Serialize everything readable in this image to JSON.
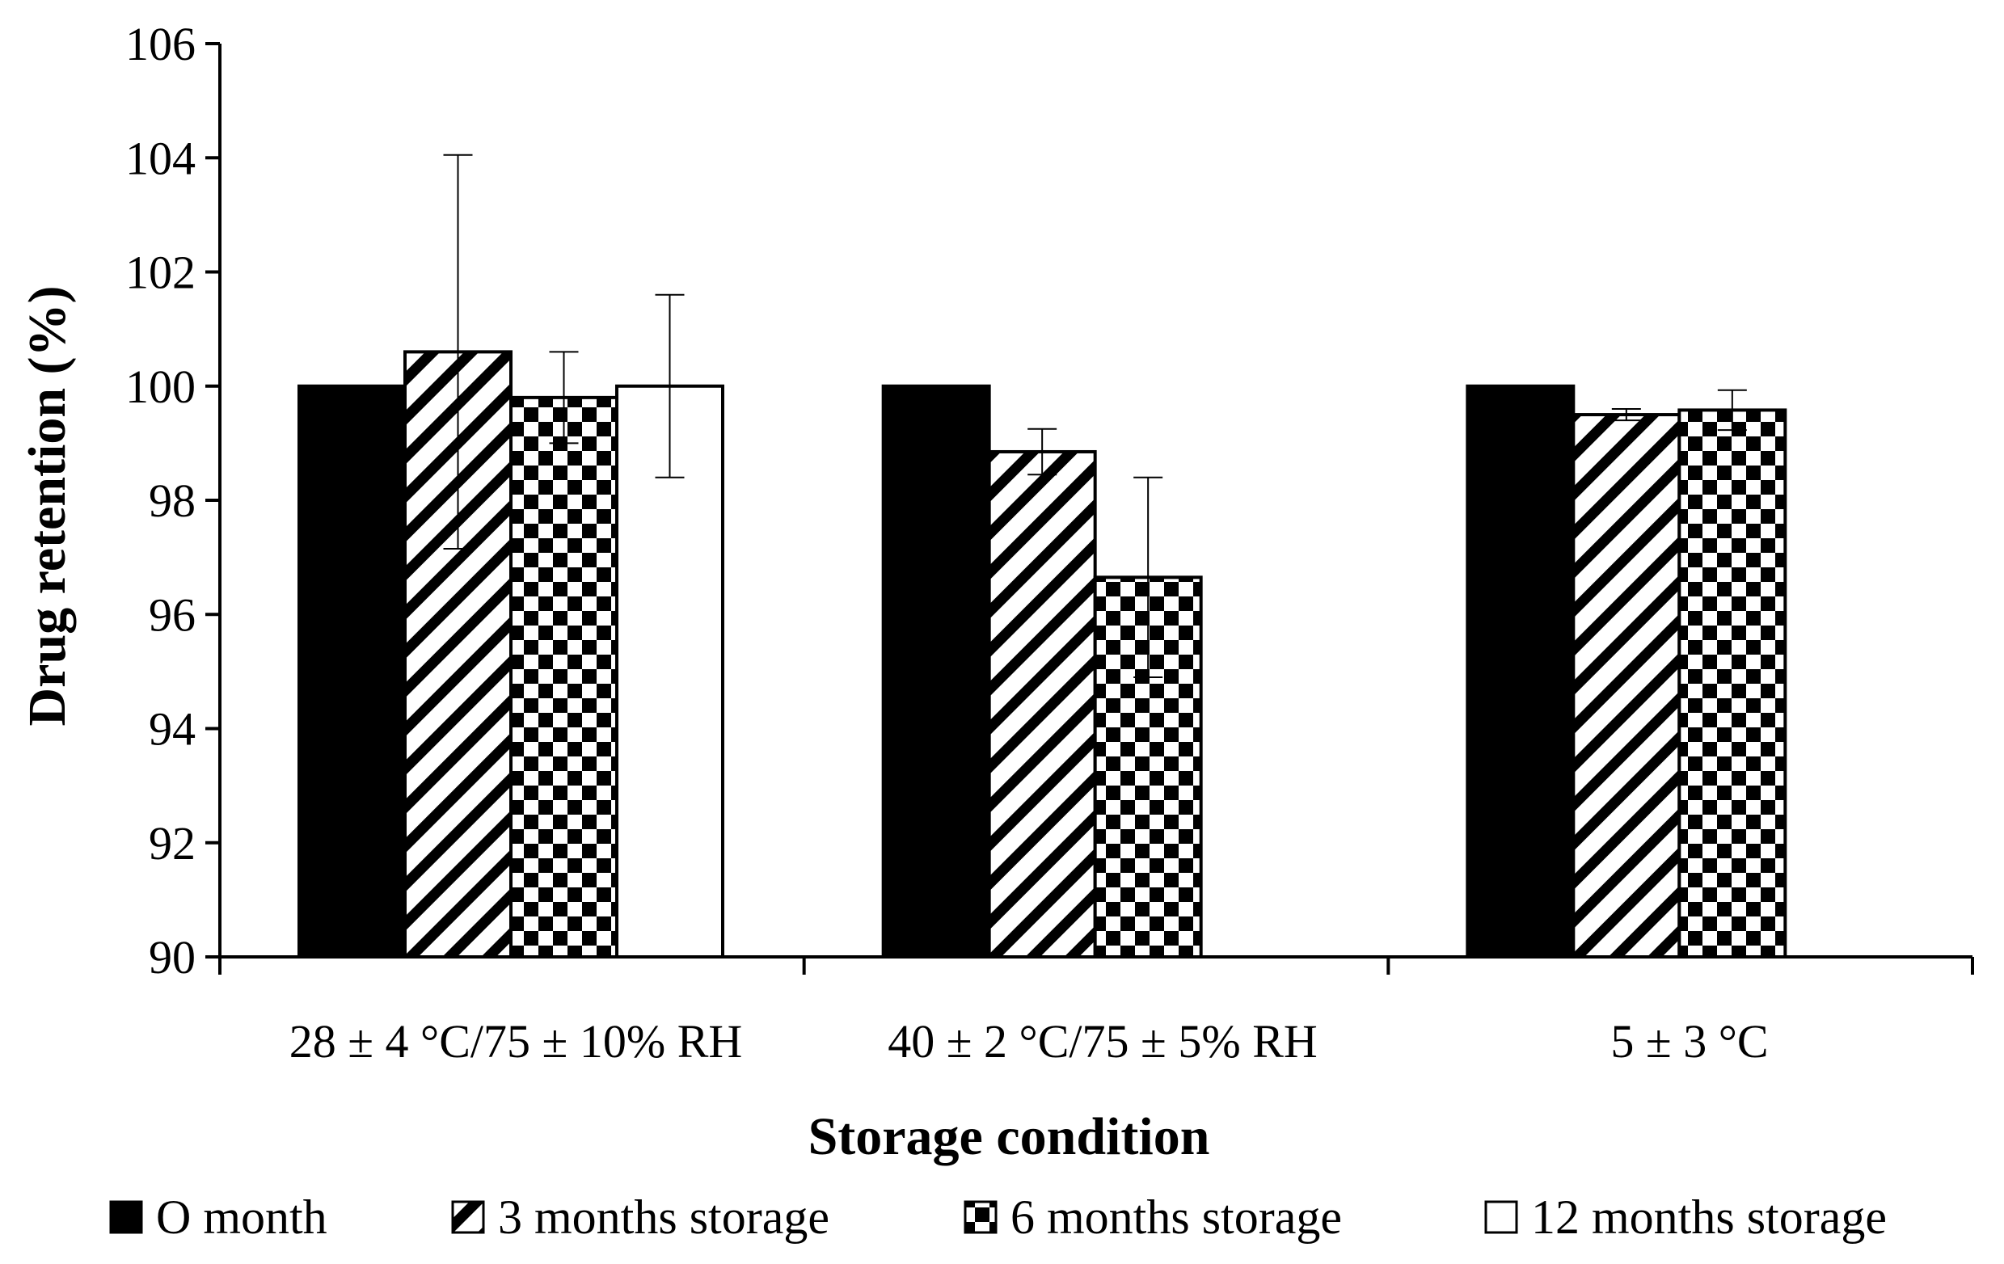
{
  "chart_data": {
    "type": "bar",
    "title": "",
    "xlabel": "Storage condition",
    "ylabel": "Drug retention (%)",
    "ylim": [
      90,
      106
    ],
    "yticks": [
      90,
      92,
      94,
      96,
      98,
      100,
      102,
      104,
      106
    ],
    "ytick_labels": [
      "90",
      "92",
      "94",
      "96",
      "98",
      "100",
      "102",
      "104",
      "106"
    ],
    "categories": [
      "28 ± 4 °C/75 ± 10% RH",
      "40 ± 2 °C/75 ± 5% RH",
      "5 ± 3 °C"
    ],
    "series": [
      {
        "name": "O month",
        "pattern": "solid",
        "values": [
          100.0,
          100.0,
          100.0
        ],
        "errors": [
          0.0,
          0.0,
          0.0
        ]
      },
      {
        "name": "3 months storage",
        "pattern": "diagonal",
        "values": [
          100.6,
          98.85,
          99.5
        ],
        "errors": [
          3.45,
          0.4,
          0.1
        ]
      },
      {
        "name": "6 months storage",
        "pattern": "checker",
        "values": [
          99.8,
          96.65,
          99.58
        ],
        "errors": [
          0.8,
          1.75,
          0.35
        ]
      },
      {
        "name": "12 months storage",
        "pattern": "white",
        "values": [
          100.0,
          null,
          null
        ],
        "errors": [
          1.6,
          null,
          null
        ]
      }
    ],
    "legend_position": "bottom",
    "grid": false
  },
  "colors": {
    "ink": "#000000",
    "background": "#ffffff"
  }
}
